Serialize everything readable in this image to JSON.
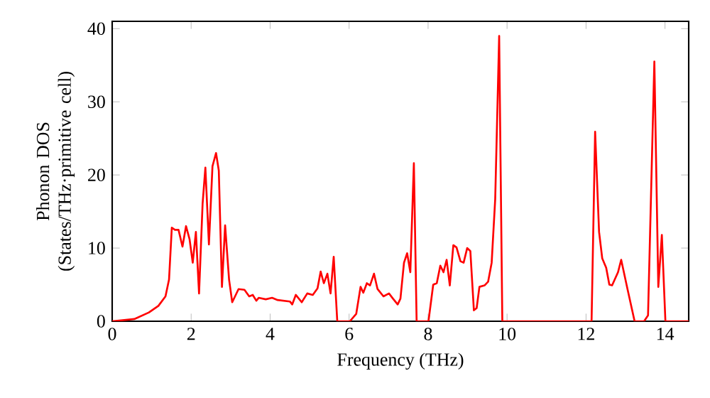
{
  "chart_data": {
    "type": "line",
    "xlabel": "Frequency (THz)",
    "ylabel": "Phonon DOS (States/THz·primitive cell)",
    "xlim": [
      0,
      14.6
    ],
    "ylim": [
      0,
      41
    ],
    "xticks": [
      0,
      2,
      4,
      6,
      8,
      10,
      12,
      14
    ],
    "yticks": [
      0,
      10,
      20,
      30,
      40
    ],
    "grid": false,
    "marker": "none",
    "line_style": "solid",
    "series": [
      {
        "color": "#ff0000",
        "x": [
          0,
          0.56,
          0.93,
          1.17,
          1.35,
          1.44,
          1.51,
          1.59,
          1.68,
          1.78,
          1.87,
          1.96,
          2.04,
          2.12,
          2.2,
          2.29,
          2.36,
          2.45,
          2.54,
          2.63,
          2.7,
          2.78,
          2.86,
          2.96,
          3.04,
          3.2,
          3.35,
          3.47,
          3.56,
          3.65,
          3.71,
          3.89,
          4.05,
          4.19,
          4.5,
          4.56,
          4.65,
          4.8,
          4.94,
          5.08,
          5.2,
          5.28,
          5.36,
          5.45,
          5.53,
          5.61,
          5.7,
          6.02,
          6.18,
          6.29,
          6.36,
          6.45,
          6.53,
          6.63,
          6.72,
          6.87,
          7.01,
          7.11,
          7.23,
          7.3,
          7.39,
          7.47,
          7.55,
          7.64,
          7.71,
          8.01,
          8.13,
          8.22,
          8.31,
          8.39,
          8.47,
          8.55,
          8.64,
          8.72,
          8.82,
          8.9,
          8.99,
          9.07,
          9.16,
          9.23,
          9.3,
          9.43,
          9.52,
          9.61,
          9.7,
          9.8,
          9.88,
          12.14,
          12.23,
          12.33,
          12.41,
          12.51,
          12.59,
          12.66,
          12.81,
          12.89,
          13.05,
          13.23,
          13.47,
          13.57,
          13.73,
          13.83,
          13.92,
          14.01,
          14.6
        ],
        "values": [
          0,
          0.3,
          1.2,
          2.1,
          3.4,
          5.7,
          12.8,
          12.5,
          12.5,
          10.2,
          13.0,
          11.2,
          8.0,
          12.2,
          3.8,
          16.1,
          21.0,
          10.5,
          21.2,
          23.0,
          20.6,
          4.7,
          13.1,
          5.7,
          2.6,
          4.4,
          4.3,
          3.4,
          3.6,
          2.8,
          3.2,
          3.0,
          3.2,
          2.9,
          2.7,
          2.3,
          3.6,
          2.6,
          3.8,
          3.6,
          4.5,
          6.8,
          5.2,
          6.5,
          3.8,
          8.8,
          0,
          0,
          1.0,
          4.7,
          3.9,
          5.2,
          4.9,
          6.5,
          4.4,
          3.4,
          3.8,
          3.1,
          2.3,
          3.1,
          8.0,
          9.3,
          6.7,
          21.6,
          0,
          0,
          5.0,
          5.2,
          7.6,
          6.7,
          8.4,
          4.9,
          10.4,
          10.1,
          8.2,
          8.0,
          10.0,
          9.6,
          1.5,
          1.8,
          4.7,
          4.9,
          5.4,
          8.0,
          16.7,
          39.0,
          0,
          0,
          25.9,
          12.2,
          8.6,
          7.3,
          5.0,
          4.9,
          6.7,
          8.4,
          4.4,
          0,
          0,
          0.8,
          35.5,
          4.7,
          11.8,
          0,
          0
        ]
      }
    ]
  }
}
